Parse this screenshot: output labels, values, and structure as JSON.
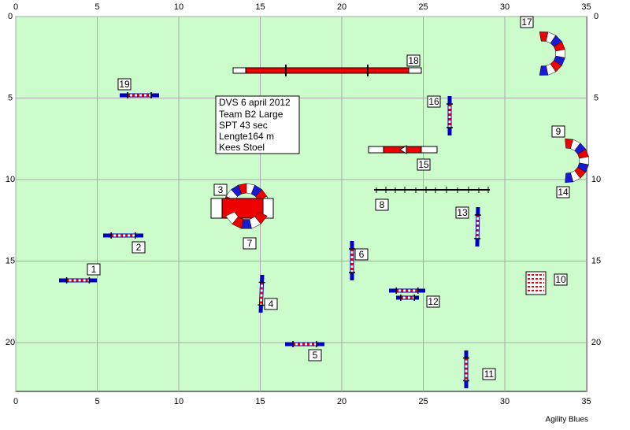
{
  "axis": {
    "x_ticks": [
      0,
      5,
      10,
      15,
      20,
      25,
      30,
      35
    ],
    "y_ticks": [
      0,
      5,
      10,
      15,
      20
    ]
  },
  "info": [
    "DVS 6 april 2012",
    "Team B2 Large",
    "SPT 43 sec",
    "Lengte164 m",
    "Kees Stoel"
  ],
  "obstacle_numbers": [
    "1",
    "2",
    "3",
    "4",
    "5",
    "6",
    "7",
    "8",
    "9",
    "10",
    "11",
    "12",
    "13",
    "14",
    "15",
    "16",
    "17",
    "18",
    "19"
  ],
  "footer": "Agility Blues"
}
